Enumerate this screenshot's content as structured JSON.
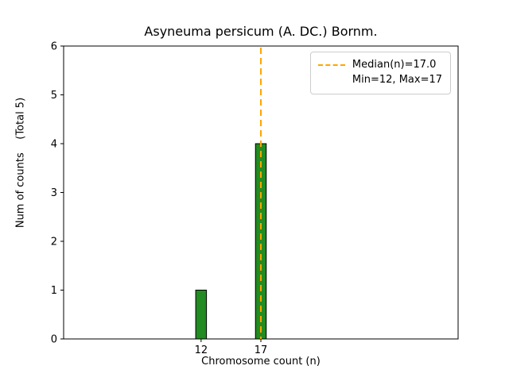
{
  "colors": {
    "bar_fill": "#228B22",
    "bar_edge": "#000000",
    "median_line": "#FFA500",
    "axis": "#000000",
    "background": "#ffffff",
    "legend_border": "#cccccc"
  },
  "chart_data": {
    "type": "bar",
    "title": "Asyneuma persicum (A. DC.) Bornm.",
    "xlabel": "Chromosome count (n)",
    "ylabel": "Num of counts    (Total 5)",
    "x": [
      12,
      17
    ],
    "values": [
      1,
      4
    ],
    "bar_width": 0.9,
    "xlim": [
      0.5,
      33.5
    ],
    "ylim": [
      0,
      6
    ],
    "xticks": [
      12,
      17
    ],
    "yticks": [
      0,
      1,
      2,
      3,
      4,
      5,
      6
    ],
    "median": 17.0,
    "min": 12,
    "max": 17,
    "total_counts": 5,
    "grid": false,
    "legend_position": "upper right",
    "legend": [
      "Median(n)=17.0",
      "Min=12, Max=17"
    ]
  }
}
